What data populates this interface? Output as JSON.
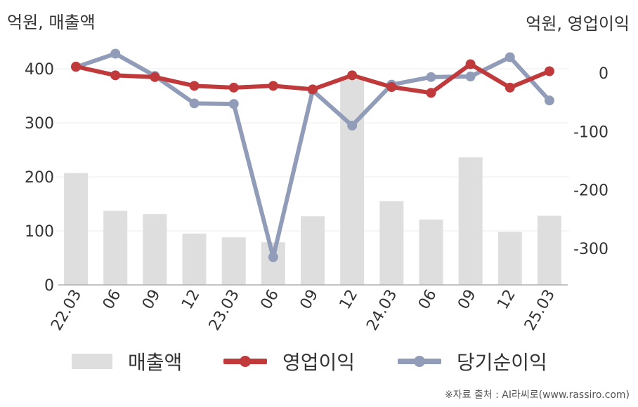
{
  "units": {
    "left": "억원, 매출액",
    "right": "억원, 영업이익"
  },
  "source": "※자료 출처 : AI라씨로(www.rassiro.com)",
  "legend": {
    "revenue": "매출액",
    "operating": "영업이익",
    "net": "당기순이익"
  },
  "colors": {
    "revenue": "#dedede",
    "operating": "#c0393b",
    "net": "#919cb8"
  },
  "chart_data": {
    "type": "bar+line",
    "categories": [
      "22.03",
      "06",
      "09",
      "12",
      "23.03",
      "06",
      "09",
      "12",
      "24.03",
      "06",
      "09",
      "12",
      "25.03"
    ],
    "left_axis": {
      "ylim": [
        0,
        450
      ],
      "ticks": [
        0,
        100,
        200,
        300,
        400
      ]
    },
    "right_axis": {
      "ylim": [
        -370,
        120
      ],
      "ticks": [
        -300,
        -200,
        -100,
        0
      ]
    },
    "series": [
      {
        "name": "매출액",
        "type": "bar",
        "axis": "left",
        "values": [
          207,
          137,
          131,
          95,
          88,
          79,
          127,
          380,
          155,
          121,
          236,
          98,
          128
        ]
      },
      {
        "name": "영업이익",
        "type": "line",
        "axis": "right",
        "values": [
          11,
          -4,
          -7,
          -22,
          -25,
          -22,
          -28,
          -4,
          -24,
          -34,
          15,
          -25,
          3
        ]
      },
      {
        "name": "당기순이익",
        "type": "line",
        "axis": "right",
        "values": [
          10,
          33,
          -5,
          -52,
          -53,
          -315,
          -30,
          -90,
          -20,
          -7,
          -6,
          27,
          -47
        ]
      }
    ]
  }
}
